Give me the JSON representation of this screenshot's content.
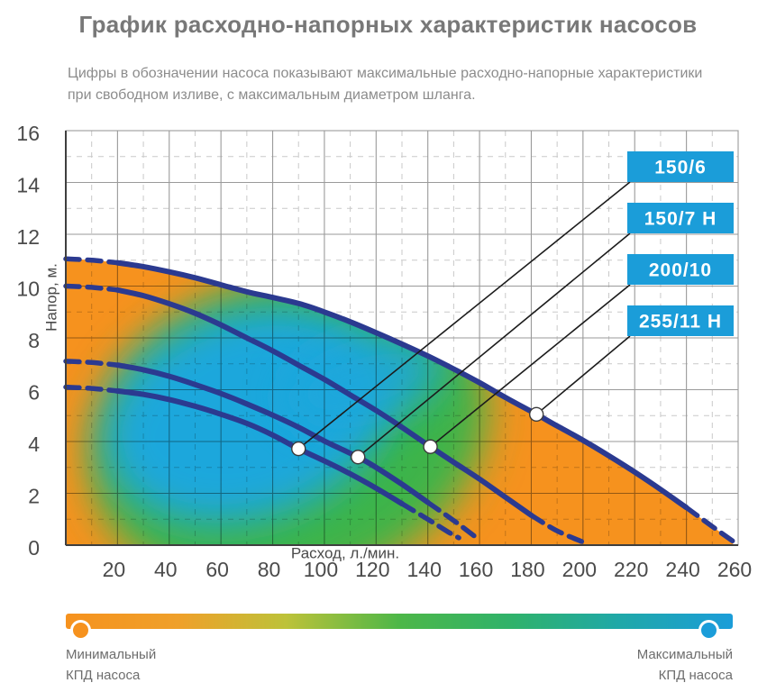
{
  "page": {
    "title": "График расходно-напорных характеристик насосов",
    "subtitle_line1": "Цифры в обозначении насоса показывают максимальные расходно-напорные характеристики",
    "subtitle_line2": "при свободном изливе, с максимальным диаметром шланга."
  },
  "chart_data": {
    "type": "line",
    "xlabel": "Расход, л./мин.",
    "ylabel": "Напор, м.",
    "xlim": [
      0,
      260
    ],
    "ylim": [
      0,
      16
    ],
    "xticks": [
      20,
      40,
      60,
      80,
      100,
      120,
      140,
      160,
      180,
      200,
      220,
      240,
      260
    ],
    "yticks": [
      0,
      2,
      4,
      6,
      8,
      10,
      12,
      14,
      16
    ],
    "grid": "major solid, minor dashed",
    "curve_color": "#2B3A90",
    "callout_box_color": "#1B9DD9",
    "callout_text_color": "#FFFFFF",
    "marker_fill": "#FFFFFF",
    "efficiency_colors": {
      "min": "#F6921E",
      "mid": "#3CB44A",
      "max": "#1BA7DC"
    },
    "callouts": [
      "150/6",
      "150/7 Н",
      "200/10",
      "255/11 Н"
    ],
    "series": [
      {
        "name": "255/11 Н",
        "max_flow_lpm": 255,
        "max_head_m": 11,
        "dash_head_q": 20,
        "dash_tail_q": 240,
        "marker": [
          182,
          5.05
        ],
        "points": [
          [
            0,
            11.05
          ],
          [
            10,
            11.0
          ],
          [
            20,
            10.9
          ],
          [
            30,
            10.75
          ],
          [
            40,
            10.55
          ],
          [
            50,
            10.32
          ],
          [
            60,
            10.05
          ],
          [
            70,
            9.78
          ],
          [
            80,
            9.56
          ],
          [
            90,
            9.33
          ],
          [
            100,
            9.0
          ],
          [
            110,
            8.62
          ],
          [
            120,
            8.2
          ],
          [
            130,
            7.76
          ],
          [
            140,
            7.3
          ],
          [
            150,
            6.8
          ],
          [
            160,
            6.27
          ],
          [
            170,
            5.7
          ],
          [
            182,
            5.05
          ],
          [
            190,
            4.6
          ],
          [
            200,
            4.05
          ],
          [
            210,
            3.45
          ],
          [
            220,
            2.82
          ],
          [
            230,
            2.15
          ],
          [
            240,
            1.45
          ],
          [
            250,
            0.72
          ],
          [
            258,
            0.15
          ]
        ]
      },
      {
        "name": "200/10",
        "max_flow_lpm": 200,
        "max_head_m": 10,
        "dash_head_q": 20,
        "dash_tail_q": 180,
        "marker": [
          141,
          3.8
        ],
        "points": [
          [
            0,
            10.0
          ],
          [
            10,
            9.95
          ],
          [
            20,
            9.85
          ],
          [
            30,
            9.63
          ],
          [
            40,
            9.32
          ],
          [
            50,
            8.95
          ],
          [
            60,
            8.5
          ],
          [
            70,
            8.0
          ],
          [
            80,
            7.5
          ],
          [
            90,
            6.95
          ],
          [
            100,
            6.4
          ],
          [
            110,
            5.8
          ],
          [
            120,
            5.2
          ],
          [
            130,
            4.55
          ],
          [
            141,
            3.8
          ],
          [
            150,
            3.2
          ],
          [
            160,
            2.55
          ],
          [
            170,
            1.85
          ],
          [
            180,
            1.15
          ],
          [
            190,
            0.55
          ],
          [
            200,
            0.12
          ]
        ]
      },
      {
        "name": "150/7 Н",
        "max_flow_lpm": 150,
        "max_head_m": 7,
        "dash_head_q": 20,
        "dash_tail_q": 140,
        "marker": [
          113,
          3.4
        ],
        "points": [
          [
            0,
            7.1
          ],
          [
            10,
            7.05
          ],
          [
            20,
            6.95
          ],
          [
            30,
            6.77
          ],
          [
            40,
            6.52
          ],
          [
            50,
            6.2
          ],
          [
            60,
            5.85
          ],
          [
            70,
            5.45
          ],
          [
            80,
            5.02
          ],
          [
            90,
            4.55
          ],
          [
            100,
            4.02
          ],
          [
            113,
            3.4
          ],
          [
            120,
            3.0
          ],
          [
            130,
            2.35
          ],
          [
            140,
            1.65
          ],
          [
            150,
            0.95
          ],
          [
            158,
            0.35
          ]
        ]
      },
      {
        "name": "150/6",
        "max_flow_lpm": 150,
        "max_head_m": 6,
        "dash_head_q": 20,
        "dash_tail_q": 130,
        "marker": [
          90,
          3.72
        ],
        "points": [
          [
            0,
            6.1
          ],
          [
            10,
            6.05
          ],
          [
            20,
            5.95
          ],
          [
            30,
            5.82
          ],
          [
            40,
            5.62
          ],
          [
            50,
            5.36
          ],
          [
            60,
            5.05
          ],
          [
            70,
            4.7
          ],
          [
            80,
            4.25
          ],
          [
            90,
            3.72
          ],
          [
            100,
            3.25
          ],
          [
            110,
            2.75
          ],
          [
            120,
            2.2
          ],
          [
            130,
            1.6
          ],
          [
            140,
            1.0
          ],
          [
            148,
            0.5
          ],
          [
            152,
            0.28
          ]
        ]
      }
    ]
  },
  "legend": {
    "min_label": "Минимальный\nКПД насоса",
    "max_label": "Максимальный\nКПД насоса",
    "min_color": "#F6921E",
    "max_color": "#1B9DD9",
    "gradient": [
      "#F6921E",
      "#EFA02A",
      "#BDC239",
      "#4DB748",
      "#2FB26B",
      "#1FA8A8",
      "#1B9DD9"
    ]
  }
}
